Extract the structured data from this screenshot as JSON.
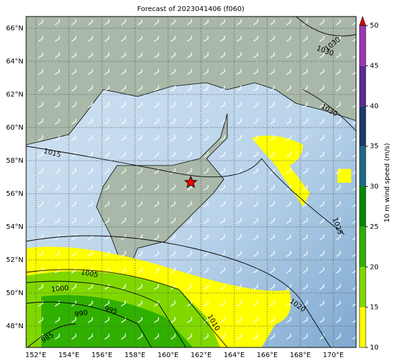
{
  "title": "Forecast of 2023041406 (f060)",
  "map": {
    "lat_labels": [
      "66°N",
      "64°N",
      "62°N",
      "60°N",
      "58°N",
      "56°N",
      "54°N",
      "52°N",
      "50°N",
      "48°N"
    ],
    "lon_labels": [
      "152°E",
      "154°E",
      "156°E",
      "158°E",
      "160°E",
      "162°E",
      "164°E",
      "166°E",
      "168°E",
      "170°E"
    ],
    "isobar_labels": [
      "1030",
      "1030",
      "1030",
      "1015",
      "1025",
      "1005",
      "1000",
      "990",
      "995",
      "985",
      "1020",
      "1010"
    ]
  },
  "colorbar": {
    "label": "10 m wind speed (m/s)",
    "ticks": [
      10,
      15,
      20,
      25,
      30,
      35,
      40,
      45,
      50
    ],
    "colors": [
      "#ffff00",
      "#80d800",
      "#30b000",
      "#008a00",
      "#1d6a86",
      "#1c3a6c",
      "#5a2a98",
      "#9a36b8"
    ],
    "extend_color": "#e00000"
  }
}
